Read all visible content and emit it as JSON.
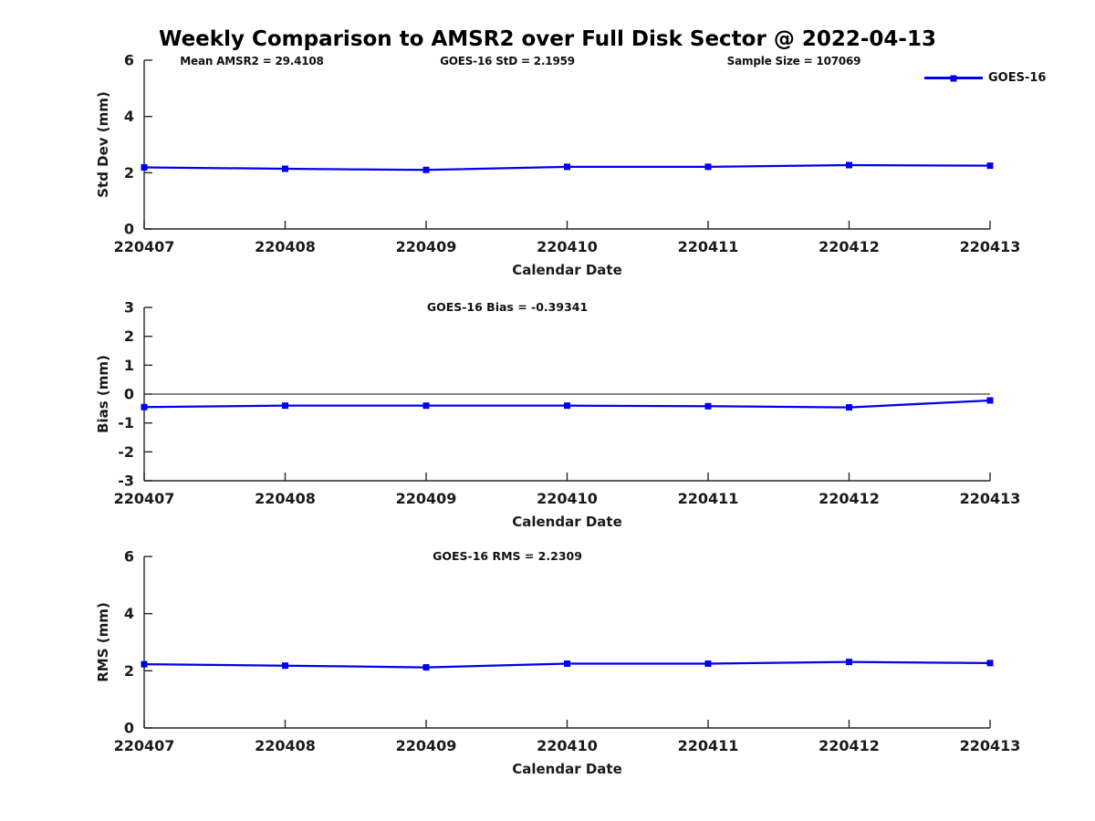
{
  "figure": {
    "title": "Weekly Comparison to AMSR2 over Full Disk Sector @ 2022-04-13",
    "annotations": [
      {
        "text": "Mean AMSR2 = 29.4108"
      },
      {
        "text": "GOES-16 StD = 2.1959"
      },
      {
        "text": "Sample Size = 107069"
      }
    ],
    "legend": {
      "label": "GOES-16"
    }
  },
  "colors": {
    "series": "#0000ee",
    "text": "#1a1a1a",
    "axis": "#262626",
    "zero_line": "#111111",
    "background": "#ffffff"
  },
  "chart_data": [
    {
      "type": "line",
      "title": "",
      "x": [
        "220407",
        "220408",
        "220409",
        "220410",
        "220411",
        "220412",
        "220413"
      ],
      "series": [
        {
          "name": "GOES-16",
          "values": [
            2.19,
            2.14,
            2.1,
            2.21,
            2.21,
            2.27,
            2.25
          ],
          "marker": "square"
        }
      ],
      "xlabel": "Calendar Date",
      "ylabel": "Std Dev (mm)",
      "ylim": [
        0,
        6
      ],
      "yticks": [
        0,
        2,
        4,
        6
      ],
      "zero_line": false,
      "grid": false,
      "legend_position": "top-right"
    },
    {
      "type": "line",
      "title": "GOES-16 Bias  = -0.39341",
      "x": [
        "220407",
        "220408",
        "220409",
        "220410",
        "220411",
        "220412",
        "220413"
      ],
      "series": [
        {
          "name": "GOES-16",
          "values": [
            -0.45,
            -0.4,
            -0.4,
            -0.4,
            -0.42,
            -0.46,
            -0.22
          ],
          "marker": "square"
        }
      ],
      "xlabel": "Calendar Date",
      "ylabel": "Bias (mm)",
      "ylim": [
        -3,
        3
      ],
      "yticks": [
        -3,
        -2,
        -1,
        0,
        1,
        2,
        3
      ],
      "zero_line": true,
      "grid": false,
      "legend_position": "none"
    },
    {
      "type": "line",
      "title": "GOES-16 RMS = 2.2309",
      "x": [
        "220407",
        "220408",
        "220409",
        "220410",
        "220411",
        "220412",
        "220413"
      ],
      "series": [
        {
          "name": "GOES-16",
          "values": [
            2.23,
            2.18,
            2.12,
            2.25,
            2.25,
            2.31,
            2.27
          ],
          "marker": "square"
        }
      ],
      "xlabel": "Calendar Date",
      "ylabel": "RMS (mm)",
      "ylim": [
        0,
        6
      ],
      "yticks": [
        0,
        2,
        4,
        6
      ],
      "zero_line": false,
      "grid": false,
      "legend_position": "none"
    }
  ]
}
